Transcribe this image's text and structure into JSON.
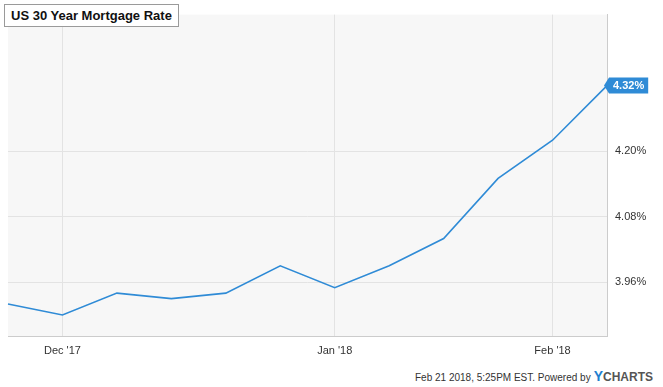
{
  "chart_data": {
    "type": "line",
    "title": "US 30 Year Mortgage Rate",
    "categories": [
      null,
      "Dec '17",
      null,
      null,
      null,
      null,
      "Jan '18",
      null,
      null,
      null,
      "Feb '18",
      null
    ],
    "values": [
      3.92,
      3.9,
      3.94,
      3.93,
      3.94,
      3.99,
      3.95,
      3.99,
      4.04,
      4.15,
      4.22,
      4.32
    ],
    "color": "#2f8bd6",
    "ylim": [
      3.86,
      4.45
    ],
    "yticks": [
      {
        "value": 3.96,
        "label": "3.96%"
      },
      {
        "value": 4.08,
        "label": "4.08%"
      },
      {
        "value": 4.2,
        "label": "4.20%"
      }
    ],
    "grid": true,
    "last_value_label": "4.32%",
    "footer": "Feb 21 2018, 5:25PM EST. Powered by",
    "brand": "YCHARTS"
  }
}
